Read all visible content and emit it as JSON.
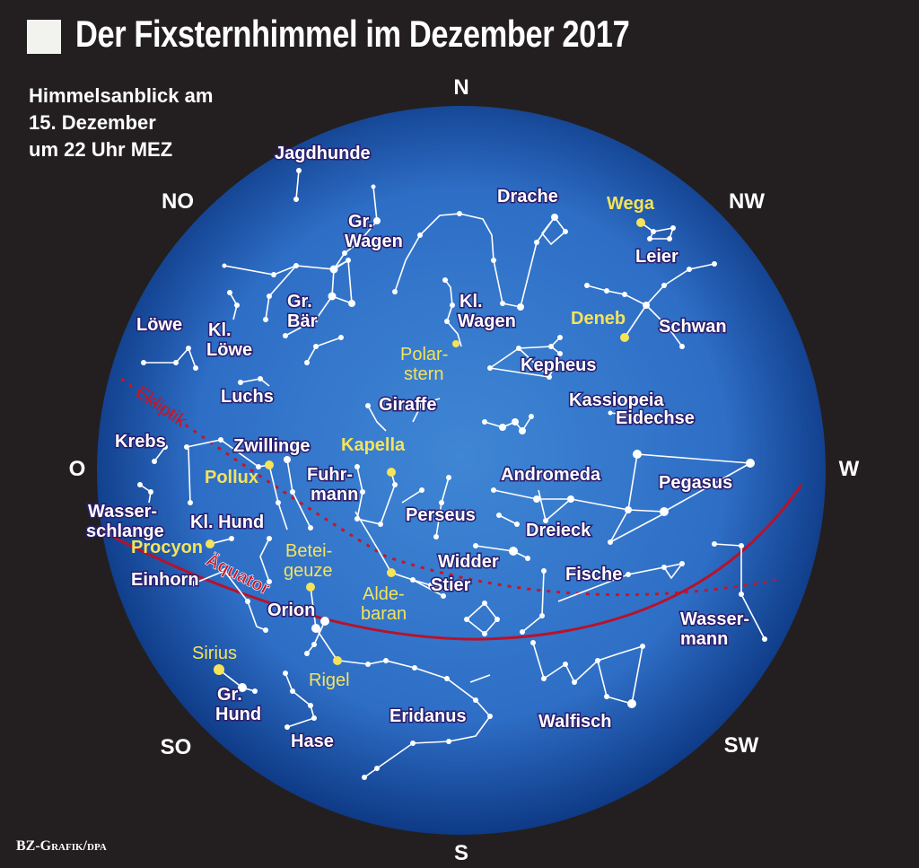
{
  "title": "Der Fixsternhimmel im Dezember 2017",
  "subtitle_lines": [
    "Himmelsanblick am",
    "15. Dezember",
    "um 22 Uhr MEZ"
  ],
  "credit": "BZ-Grafik/dpa",
  "colors": {
    "background": "#231f20",
    "sky_center": "#3f86d4",
    "sky_edge": "#0e3a86",
    "constellation_label": "#ffffff",
    "label_outline": "#2a1f6e",
    "star_label": "#f5e35a",
    "line": "#ffffff",
    "ecliptic": "#c4162a",
    "equator": "#b8122a"
  },
  "directions": [
    "N",
    "NW",
    "W",
    "SW",
    "S",
    "SO",
    "O",
    "NO"
  ],
  "circle_labels": {
    "ekliptik": "Ekliptik",
    "aequator": "Äquator"
  },
  "constellations": [
    "Jagdhunde",
    "Gr. Wagen",
    "Drache",
    "Leier",
    "Gr. Bär",
    "Kl. Wagen",
    "Schwan",
    "Löwe",
    "Kl. Löwe",
    "Kepheus",
    "Luchs",
    "Giraffe",
    "Kassiopeia",
    "Eidechse",
    "Krebs",
    "Zwillinge",
    "Fuhr-mann",
    "Andromeda",
    "Pegasus",
    "Wasser-schlange",
    "Kl. Hund",
    "Perseus",
    "Dreieck",
    "Widder",
    "Einhorn",
    "Stier",
    "Fische",
    "Orion",
    "Wasser-mann",
    "Gr. Hund",
    "Eridanus",
    "Walfisch",
    "Hase"
  ],
  "stars": [
    "Wega",
    "Deneb",
    "Polar-stern",
    "Kapella",
    "Pollux",
    "Procyon",
    "Betei-geuze",
    "Alde-baran",
    "Sirius",
    "Rigel"
  ]
}
